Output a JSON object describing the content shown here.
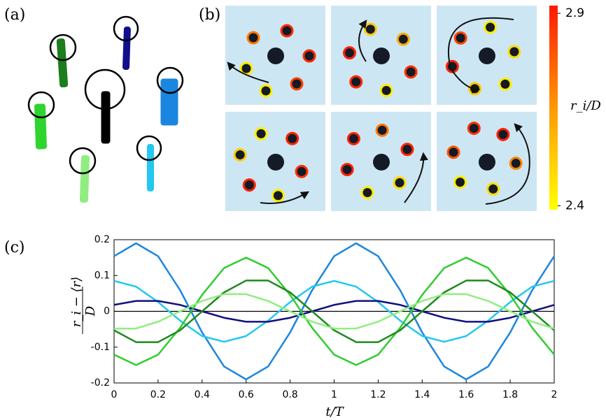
{
  "panel_labels": [
    "(a)",
    "(b)",
    "(c)"
  ],
  "colorbar": {
    "label": "r_i/D",
    "lim": [
      2.39,
      2.92
    ],
    "ticks": [
      2.4,
      2.9
    ],
    "colors": [
      "#ffff00",
      "#ff1a00"
    ]
  },
  "chart_data": {
    "type": "line",
    "ylabel_num": "r_i − ⟨r⟩",
    "ylabel_den": "D",
    "xlabel": "t/T",
    "x": [
      0,
      0.1,
      0.2,
      0.3,
      0.4,
      0.5,
      0.6,
      0.7,
      0.8,
      0.9,
      1,
      1.1,
      1.2,
      1.3,
      1.4,
      1.5,
      1.6,
      1.7,
      1.8,
      1.9,
      2
    ],
    "series": [
      {
        "color": "#1f86dc",
        "values": [
          0.154,
          0.19,
          0.154,
          0.059,
          -0.059,
          -0.154,
          -0.19,
          -0.154,
          -0.059,
          0.059,
          0.154,
          0.19,
          0.154,
          0.059,
          -0.059,
          -0.154,
          -0.19,
          -0.154,
          -0.059,
          0.059,
          0.154
        ]
      },
      {
        "color": "#22c8f0",
        "values": [
          0.085,
          0.069,
          0.026,
          -0.026,
          -0.069,
          -0.085,
          -0.069,
          -0.026,
          0.026,
          0.069,
          0.085,
          0.069,
          0.026,
          -0.026,
          -0.069,
          -0.085,
          -0.069,
          -0.026,
          0.026,
          0.069,
          0.085
        ]
      },
      {
        "color": "#101080",
        "values": [
          0.018,
          0.029,
          0.029,
          0.018,
          0,
          -0.018,
          -0.029,
          -0.029,
          -0.018,
          0,
          0.018,
          0.029,
          0.029,
          0.018,
          0,
          -0.018,
          -0.029,
          -0.029,
          -0.018,
          0,
          0.018
        ]
      },
      {
        "color": "#2fcc2f",
        "values": [
          -0.121,
          -0.15,
          -0.121,
          -0.046,
          0.046,
          0.121,
          0.15,
          0.121,
          0.046,
          -0.046,
          -0.121,
          -0.15,
          -0.121,
          -0.046,
          0.046,
          0.121,
          0.15,
          0.121,
          0.046,
          -0.046,
          -0.121
        ]
      },
      {
        "color": "#1e8a1e",
        "values": [
          -0.053,
          -0.086,
          -0.086,
          -0.053,
          0,
          0.053,
          0.086,
          0.086,
          0.053,
          0,
          -0.053,
          -0.086,
          -0.086,
          -0.053,
          0,
          0.053,
          0.086,
          0.086,
          0.053,
          0,
          -0.053
        ]
      },
      {
        "color": "#90ee80",
        "values": [
          -0.048,
          -0.048,
          -0.029,
          0,
          0.029,
          0.048,
          0.048,
          0.029,
          0,
          -0.029,
          -0.048,
          -0.048,
          -0.029,
          0,
          0.029,
          0.048,
          0.048,
          0.029,
          0,
          -0.029,
          -0.048
        ]
      }
    ],
    "xlim": [
      0,
      2
    ],
    "ylim": [
      -0.2,
      0.2
    ],
    "xticks": [
      0,
      0.2,
      0.4,
      0.6,
      0.8,
      1,
      1.2,
      1.4,
      1.6,
      1.8,
      2
    ],
    "yticks": [
      -0.2,
      -0.1,
      0,
      0.1,
      0.2
    ]
  }
}
